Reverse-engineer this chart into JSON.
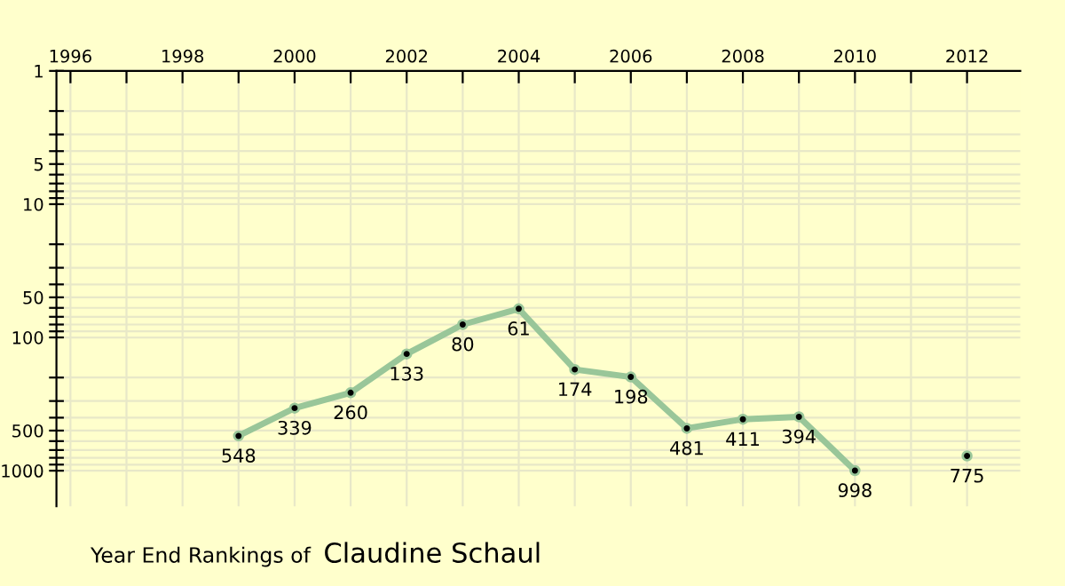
{
  "chart_data": {
    "type": "line",
    "title": "Year End Rankings of",
    "subtitle": "Claudine Schaul",
    "x": [
      1999,
      2000,
      2001,
      2002,
      2003,
      2004,
      2005,
      2006,
      2007,
      2008,
      2009,
      2010,
      2011,
      2012
    ],
    "series": [
      {
        "color": "#99c699",
        "values": [
          548,
          339,
          260,
          133,
          80,
          61,
          174,
          198,
          481,
          411,
          394,
          998,
          null,
          775
        ]
      }
    ],
    "data_labels": true,
    "log": true,
    "marker": "circle",
    "line_style": "solid",
    "grid": true,
    "xlim": [
      1995.75,
      2012.95
    ],
    "ylim": [
      1850,
      1
    ],
    "xticks": [
      1996,
      {
        "value": 1997,
        "label": null
      },
      1998,
      {
        "value": 1999,
        "label": null
      },
      2000,
      {
        "value": 2001,
        "label": null
      },
      2002,
      {
        "value": 2003,
        "label": null
      },
      2004,
      {
        "value": 2005,
        "label": null
      },
      2006,
      {
        "value": 2007,
        "label": null
      },
      2008,
      {
        "value": 2009,
        "label": null
      },
      2010,
      {
        "value": 2011,
        "label": null
      },
      2012
    ],
    "yticks": [
      1,
      {
        "value": 2,
        "label": null
      },
      {
        "value": 3,
        "label": null
      },
      {
        "value": 4,
        "label": null
      },
      5,
      {
        "value": 6,
        "label": null
      },
      {
        "value": 7,
        "label": null
      },
      {
        "value": 8,
        "label": null
      },
      {
        "value": 9,
        "label": null
      },
      10,
      {
        "value": 20,
        "label": null
      },
      {
        "value": 30,
        "label": null
      },
      {
        "value": 40,
        "label": null
      },
      50,
      {
        "value": 60,
        "label": null
      },
      {
        "value": 70,
        "label": null
      },
      {
        "value": 80,
        "label": null
      },
      {
        "value": 90,
        "label": null
      },
      100,
      {
        "value": 200,
        "label": null
      },
      {
        "value": 300,
        "label": null
      },
      {
        "value": 400,
        "label": null
      },
      500,
      {
        "value": 600,
        "label": null
      },
      {
        "value": 700,
        "label": null
      },
      {
        "value": 800,
        "label": null
      },
      {
        "value": 900,
        "label": null
      },
      1000
    ]
  }
}
